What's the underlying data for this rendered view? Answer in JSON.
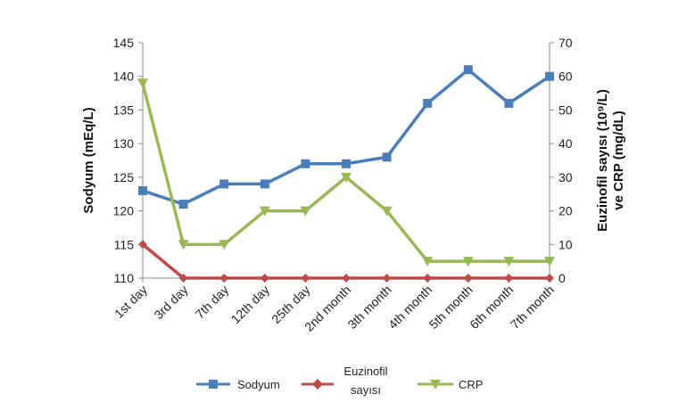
{
  "chart_data": {
    "type": "line",
    "categories": [
      "1st day",
      "3rd day",
      "7th day",
      "12th day",
      "25th day",
      "2nd month",
      "3th month",
      "4th month",
      "5th month",
      "6th month",
      "7th month"
    ],
    "y_left": {
      "label": "Sodyum (mEq/L)",
      "range": [
        110,
        145
      ],
      "ticks": [
        110,
        115,
        120,
        125,
        130,
        135,
        140,
        145
      ]
    },
    "y_right": {
      "label_line1": "Euzinofil sayısı (10⁹/L)",
      "label_line2": "ve CRP (mg/dL)",
      "range": [
        0,
        70
      ],
      "ticks": [
        0,
        10,
        20,
        30,
        40,
        50,
        60,
        70
      ]
    },
    "grid": false,
    "legend_position": "bottom",
    "series": [
      {
        "name": "Sodyum",
        "axis": "left",
        "color": "#4a7ebb",
        "marker": "square",
        "values": [
          123,
          121,
          124,
          124,
          127,
          127,
          128,
          136,
          141,
          136,
          140
        ]
      },
      {
        "name_line1": "Euzinofil",
        "name_line2": "sayısı",
        "axis": "right",
        "color": "#be4b48",
        "marker": "diamond",
        "values": [
          10,
          0,
          0,
          0,
          0,
          0,
          0,
          0,
          0,
          0,
          0
        ]
      },
      {
        "name": "CRP",
        "axis": "right",
        "color": "#98b954",
        "marker": "triangle-down",
        "values": [
          58,
          10,
          10,
          20,
          20,
          30,
          20,
          5,
          5,
          5,
          5
        ]
      }
    ]
  }
}
